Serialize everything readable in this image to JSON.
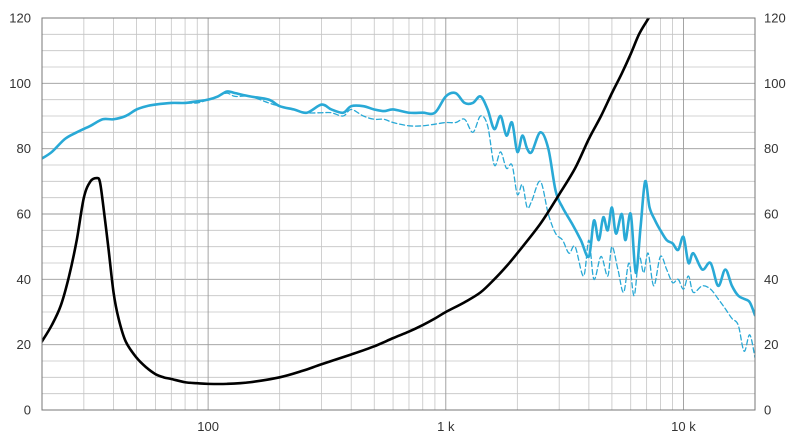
{
  "chart_data": {
    "type": "line",
    "title": "",
    "xlabel": "",
    "ylabel": "",
    "x_scale": "log",
    "xlim": [
      20,
      20000
    ],
    "ylim": [
      0,
      120
    ],
    "grid": true,
    "y_ticks": [
      0,
      20,
      40,
      60,
      80,
      100,
      120
    ],
    "y_tick_labels": [
      "0",
      "20",
      "40",
      "60",
      "80",
      "100",
      "120"
    ],
    "y_ticks_right": [
      0,
      20,
      40,
      60,
      80,
      100,
      120
    ],
    "y_tick_labels_right": [
      "0",
      "20",
      "40",
      "60",
      "80",
      "100",
      "120"
    ],
    "x_ticks": [
      100,
      1000,
      10000
    ],
    "x_tick_labels": [
      "100",
      "1 k",
      "10 k"
    ],
    "series": [
      {
        "color": "#29a9d6",
        "dash": "solid",
        "x": [
          20,
          22,
          25,
          28,
          32,
          36,
          40,
          45,
          50,
          55,
          60,
          70,
          80,
          90,
          100,
          110,
          120,
          130,
          150,
          180,
          200,
          230,
          260,
          300,
          330,
          370,
          400,
          450,
          500,
          550,
          600,
          700,
          800,
          900,
          1000,
          1100,
          1200,
          1300,
          1400,
          1500,
          1600,
          1700,
          1800,
          1900,
          2000,
          2100,
          2200,
          2300,
          2500,
          2700,
          2900,
          3100,
          3400,
          3700,
          4000,
          4200,
          4400,
          4600,
          4800,
          5000,
          5200,
          5500,
          5700,
          6000,
          6300,
          6600,
          6900,
          7200,
          7600,
          8000,
          8500,
          9000,
          9500,
          10000,
          10500,
          11000,
          12000,
          13000,
          14000,
          15000,
          16000,
          17000,
          18000,
          19000,
          20000
        ],
        "y": [
          77,
          79,
          83,
          85,
          87,
          89,
          89,
          90,
          92,
          93,
          93.5,
          94,
          94,
          94.5,
          95,
          96,
          97.5,
          97,
          96,
          95,
          93,
          92,
          91,
          93.5,
          92,
          91,
          93,
          93,
          92,
          91.5,
          92,
          91,
          91,
          91,
          96,
          97,
          94,
          94,
          96,
          92,
          86,
          90,
          84,
          88,
          79,
          84,
          80,
          79,
          85,
          80,
          67,
          62,
          57,
          52,
          47,
          58,
          52,
          59,
          55,
          62,
          54,
          60,
          52,
          60,
          42,
          56,
          70,
          62,
          58,
          55,
          52,
          51,
          49,
          53,
          45,
          48,
          43,
          45,
          38,
          43,
          38,
          35,
          34,
          33,
          29
        ]
      },
      {
        "color": "#29a9d6",
        "dash": "dashed",
        "x": [
          20,
          22,
          25,
          28,
          32,
          36,
          40,
          45,
          50,
          55,
          60,
          70,
          80,
          90,
          100,
          110,
          120,
          130,
          150,
          180,
          200,
          230,
          260,
          300,
          330,
          370,
          400,
          450,
          500,
          550,
          600,
          700,
          800,
          900,
          1000,
          1100,
          1200,
          1300,
          1400,
          1500,
          1600,
          1700,
          1800,
          1900,
          2000,
          2100,
          2200,
          2300,
          2500,
          2700,
          2900,
          3100,
          3300,
          3500,
          3800,
          4000,
          4200,
          4500,
          4800,
          5000,
          5300,
          5600,
          5900,
          6200,
          6500,
          6800,
          7100,
          7500,
          8000,
          8500,
          9000,
          9500,
          10000,
          10500,
          11000,
          12000,
          13000,
          14000,
          15000,
          16000,
          17000,
          18000,
          19000,
          20000
        ],
        "y": [
          77,
          79,
          83,
          85,
          87,
          89,
          89,
          90,
          92,
          93,
          93.5,
          94,
          94,
          94,
          95,
          96,
          97,
          96,
          96,
          94,
          93,
          92,
          91,
          91,
          91,
          90,
          92,
          90,
          89,
          89,
          88,
          87,
          87,
          87.5,
          88,
          88,
          89,
          85,
          90,
          87,
          75,
          79,
          74,
          75,
          66,
          69,
          62,
          64,
          70,
          60,
          54,
          52,
          48,
          50,
          41,
          52,
          40,
          47,
          41,
          50,
          43,
          36,
          45,
          35,
          47,
          42,
          48,
          38,
          47,
          43,
          39,
          40,
          37,
          41,
          36,
          38,
          37,
          34,
          31,
          28,
          26,
          18,
          23,
          16
        ]
      },
      {
        "color": "#000000",
        "dash": "solid",
        "x": [
          20,
          22,
          24,
          26,
          28,
          30,
          32,
          34,
          35,
          36,
          38,
          40,
          42,
          45,
          50,
          55,
          60,
          65,
          70,
          80,
          90,
          100,
          120,
          150,
          200,
          250,
          300,
          400,
          500,
          600,
          700,
          800,
          900,
          1000,
          1200,
          1400,
          1600,
          1800,
          2000,
          2500,
          3000,
          3500,
          4000,
          4500,
          5000,
          5500,
          6000,
          6500,
          7000,
          7300
        ],
        "y": [
          21,
          26,
          32,
          41,
          52,
          65,
          70,
          71,
          70,
          64,
          50,
          36,
          28,
          21,
          16,
          13,
          11,
          10,
          9.5,
          8.5,
          8.2,
          8,
          8,
          8.5,
          10,
          12,
          14,
          17,
          19.5,
          22,
          24,
          26,
          28,
          30,
          33,
          36,
          40,
          44,
          48,
          57,
          66,
          74,
          83,
          90,
          97,
          103,
          109,
          115,
          119,
          121
        ]
      }
    ]
  }
}
